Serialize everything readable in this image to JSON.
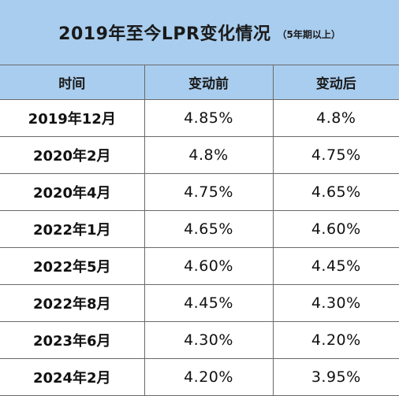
{
  "title": {
    "main": "2019年至今LPR变化情况",
    "sub": "（5年期以上）"
  },
  "table": {
    "headers": [
      "时间",
      "变动前",
      "变动后"
    ],
    "rows": [
      {
        "date": "2019年12月",
        "before": "4.85%",
        "after": "4.8%"
      },
      {
        "date": "2020年2月",
        "before": "4.8%",
        "after": "4.75%"
      },
      {
        "date": "2020年4月",
        "before": "4.75%",
        "after": "4.65%"
      },
      {
        "date": "2022年1月",
        "before": "4.65%",
        "after": "4.60%"
      },
      {
        "date": "2022年5月",
        "before": "4.60%",
        "after": "4.45%"
      },
      {
        "date": "2022年8月",
        "before": "4.45%",
        "after": "4.30%"
      },
      {
        "date": "2023年6月",
        "before": "4.30%",
        "after": "4.20%"
      },
      {
        "date": "2024年2月",
        "before": "4.20%",
        "after": "3.95%"
      }
    ]
  },
  "colors": {
    "header_background": "#a9cdee",
    "grid_line": "#6a6a6a",
    "body_background": "#ffffff"
  }
}
